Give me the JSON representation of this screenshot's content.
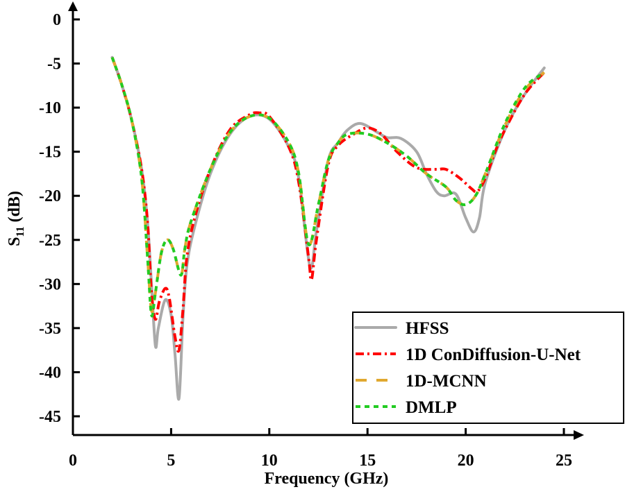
{
  "chart_data": {
    "type": "line",
    "title": "",
    "xlabel": "Frequency (GHz)",
    "ylabel_main": "S",
    "ylabel_sub": "11",
    "ylabel_unit": " (dB)",
    "xlim": [
      0,
      25
    ],
    "ylim": [
      -45,
      0
    ],
    "xticks": [
      0,
      5,
      10,
      15,
      20,
      25
    ],
    "yticks": [
      0,
      -5,
      -10,
      -15,
      -20,
      -25,
      -30,
      -35,
      -40,
      -45
    ],
    "grid": false,
    "legend_position": "bottom-right",
    "series": [
      {
        "name": "HFSS",
        "color": "#aaaaaa",
        "dash": "solid",
        "x": [
          2,
          2.5,
          3,
          3.5,
          3.8,
          4.0,
          4.2,
          4.35,
          4.7,
          5.0,
          5.2,
          5.4,
          5.6,
          5.8,
          6.2,
          7,
          8,
          9,
          10,
          11,
          11.5,
          12.07,
          12.4,
          13,
          13.5,
          14,
          14.65,
          15.5,
          16,
          16.7,
          17.5,
          18,
          18.5,
          18.9,
          19.5,
          20,
          20.4,
          20.7,
          21,
          22,
          23,
          24
        ],
        "y": [
          -4.3,
          -7.5,
          -11.5,
          -17,
          -23,
          -30,
          -37,
          -35,
          -31.8,
          -33.5,
          -38,
          -43,
          -34,
          -28,
          -23.5,
          -17.5,
          -13,
          -11,
          -11.3,
          -14.5,
          -18,
          -28,
          -24,
          -16,
          -14,
          -12.5,
          -11.8,
          -12.8,
          -13.4,
          -13.5,
          -15,
          -17.5,
          -19.5,
          -20,
          -19.8,
          -22.5,
          -24.1,
          -22.5,
          -18.5,
          -12.5,
          -8.5,
          -5.5
        ]
      },
      {
        "name": "1D ConDiffusion-U-Net",
        "color": "#ff0000",
        "dash": "dashdot",
        "x": [
          2,
          2.5,
          3,
          3.5,
          3.8,
          4.0,
          4.2,
          4.4,
          4.7,
          4.9,
          5.2,
          5.4,
          5.6,
          5.8,
          6.2,
          7,
          8,
          9,
          9.5,
          10,
          11,
          11.5,
          12,
          12.15,
          12.4,
          13,
          13.5,
          14.3,
          15,
          15.7,
          16.5,
          17.5,
          18.5,
          19,
          19.7,
          20.3,
          20.6,
          21,
          21.5,
          22,
          23,
          24
        ],
        "y": [
          -4.3,
          -7.5,
          -11.5,
          -17,
          -23,
          -31,
          -34,
          -32,
          -30.5,
          -31.5,
          -36,
          -37.5,
          -33,
          -27,
          -22.5,
          -17,
          -12.5,
          -10.8,
          -10.6,
          -11,
          -14.5,
          -18.5,
          -27,
          -29.5,
          -25,
          -16.5,
          -14.3,
          -13,
          -12.3,
          -13,
          -15,
          -16.8,
          -17,
          -17,
          -18,
          -19.2,
          -19.5,
          -18,
          -15,
          -12.5,
          -8.5,
          -6
        ]
      },
      {
        "name": "1D-MCNN",
        "color": "#e0a830",
        "dash": "dash",
        "x": [
          2,
          2.5,
          3,
          3.5,
          3.8,
          4.0,
          4.2,
          4.5,
          4.8,
          5.1,
          5.5,
          5.7,
          6,
          7,
          8,
          9,
          10,
          11,
          11.5,
          12,
          12.5,
          13,
          13.5,
          14,
          15,
          16,
          17,
          18,
          19,
          19.5,
          20,
          20.5,
          21,
          22,
          23,
          24
        ],
        "y": [
          -4.3,
          -7.5,
          -11.5,
          -18,
          -27,
          -33,
          -31,
          -26.5,
          -25,
          -26,
          -29,
          -26,
          -23,
          -17,
          -12.8,
          -11,
          -11.2,
          -14,
          -17.5,
          -25.5,
          -21,
          -16,
          -14,
          -13,
          -13,
          -14,
          -15.5,
          -17.5,
          -19,
          -20.5,
          -21,
          -20,
          -17.5,
          -12,
          -8,
          -6
        ]
      },
      {
        "name": "DMLP",
        "color": "#22cc22",
        "dash": "dot",
        "x": [
          2,
          2.5,
          3,
          3.5,
          3.8,
          4.0,
          4.2,
          4.5,
          4.8,
          5.1,
          5.5,
          5.7,
          6,
          7,
          8,
          9,
          10,
          11,
          11.5,
          12,
          12.5,
          13,
          13.5,
          14,
          15,
          16,
          17,
          18,
          19,
          19.5,
          20,
          20.5,
          21,
          22,
          23,
          23.8
        ],
        "y": [
          -4.3,
          -7.5,
          -11.5,
          -18,
          -27,
          -33.5,
          -31,
          -26.5,
          -25,
          -26,
          -29,
          -26,
          -23,
          -17,
          -12.8,
          -11,
          -11.2,
          -14,
          -17.5,
          -25.5,
          -21,
          -16,
          -14,
          -13,
          -13,
          -14,
          -15.5,
          -17.5,
          -19,
          -20.5,
          -21,
          -20,
          -17.5,
          -11.8,
          -7.8,
          -6.3
        ]
      }
    ]
  }
}
